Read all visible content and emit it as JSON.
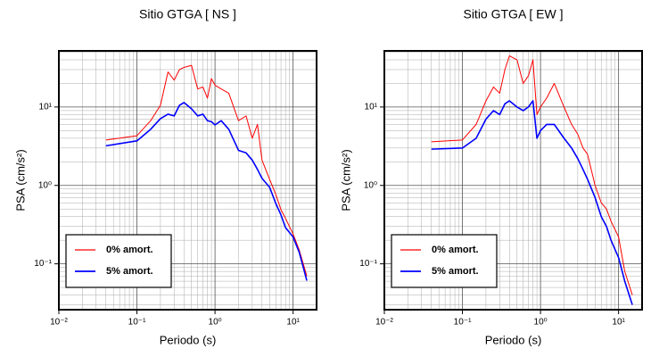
{
  "chart_data": [
    {
      "type": "line",
      "title": "Sitio GTGA [ NS ]",
      "xlabel": "Periodo (s)",
      "ylabel": "PSA (cm/s²)",
      "log_x": true,
      "log_y": true,
      "grid": true,
      "legend": "lower left",
      "x": [
        0.04,
        0.1,
        0.15,
        0.2,
        0.25,
        0.3,
        0.35,
        0.4,
        0.5,
        0.6,
        0.7,
        0.8,
        0.9,
        1,
        1.2,
        1.5,
        2,
        2.5,
        3,
        3.5,
        4,
        5,
        6,
        7,
        8,
        10,
        12,
        15
      ],
      "series": [
        {
          "name": "0% amort.",
          "color": "#ff0000",
          "values": [
            3.8,
            4.3,
            6.7,
            10.5,
            28,
            22,
            30,
            32,
            34,
            17,
            18,
            13,
            23,
            19,
            17,
            15,
            6.7,
            7.7,
            4,
            6,
            2.1,
            1.2,
            0.77,
            0.49,
            0.38,
            0.24,
            0.15,
            0.07
          ]
        },
        {
          "name": "5% amort.",
          "color": "#0000ff",
          "values": [
            3.2,
            3.7,
            5.2,
            7.1,
            8.1,
            7.7,
            10.5,
            11.4,
            9.5,
            7.7,
            8.1,
            6.7,
            6.5,
            5.9,
            6.7,
            5.2,
            2.8,
            2.6,
            2.1,
            1.6,
            1.23,
            0.95,
            0.59,
            0.42,
            0.29,
            0.22,
            0.14,
            0.061
          ]
        }
      ],
      "xlim": [
        0.01,
        20
      ],
      "ylim": [
        0.026,
        52
      ],
      "xticks": [
        {
          "value": 0.01,
          "label": "10⁻²"
        },
        {
          "value": 0.1,
          "label": "10⁻¹"
        },
        {
          "value": 1,
          "label": "10⁰"
        },
        {
          "value": 10,
          "label": "10¹"
        }
      ],
      "yticks": [
        {
          "value": 0.1,
          "label": "10⁻¹"
        },
        {
          "value": 1,
          "label": "10⁰"
        },
        {
          "value": 10,
          "label": "10¹"
        }
      ],
      "xminor": [
        0.02,
        0.03,
        0.04,
        0.05,
        0.06,
        0.07,
        0.08,
        0.09,
        0.2,
        0.3,
        0.4,
        0.5,
        0.6,
        0.7,
        0.8,
        0.9,
        2,
        3,
        4,
        5,
        6,
        7,
        8,
        9
      ],
      "yminor": [
        0.03,
        0.04,
        0.05,
        0.06,
        0.07,
        0.08,
        0.09,
        0.2,
        0.3,
        0.4,
        0.5,
        0.6,
        0.7,
        0.8,
        0.9,
        2,
        3,
        4,
        5,
        6,
        7,
        8,
        9,
        20,
        30,
        40,
        50
      ]
    },
    {
      "type": "line",
      "title": "Sitio GTGA [ EW ]",
      "xlabel": "Periodo (s)",
      "ylabel": "PSA (cm/s²)",
      "log_x": true,
      "log_y": true,
      "grid": true,
      "legend": "lower left",
      "x": [
        0.04,
        0.1,
        0.15,
        0.2,
        0.25,
        0.3,
        0.35,
        0.4,
        0.5,
        0.6,
        0.7,
        0.8,
        0.9,
        1,
        1.2,
        1.5,
        2,
        2.5,
        3,
        3.5,
        4,
        5,
        6,
        7,
        8,
        10,
        12,
        15
      ],
      "series": [
        {
          "name": "0% amort.",
          "color": "#ff0000",
          "values": [
            3.6,
            3.8,
            6,
            12,
            18,
            15,
            30,
            45,
            40,
            20,
            25,
            40,
            8,
            10,
            13,
            20,
            10,
            6,
            4.5,
            3,
            2.5,
            1,
            0.6,
            0.5,
            0.35,
            0.22,
            0.08,
            0.04
          ]
        },
        {
          "name": "5% amort.",
          "color": "#0000ff",
          "values": [
            2.9,
            3,
            4,
            7,
            9,
            8,
            11,
            12,
            10,
            9,
            10,
            12,
            4,
            5,
            6,
            6,
            4,
            3,
            2.2,
            1.6,
            1.2,
            0.7,
            0.4,
            0.3,
            0.2,
            0.12,
            0.06,
            0.03
          ]
        }
      ],
      "xlim": [
        0.01,
        20
      ],
      "ylim": [
        0.026,
        52
      ],
      "xticks": [
        {
          "value": 0.01,
          "label": "10⁻²"
        },
        {
          "value": 0.1,
          "label": "10⁻¹"
        },
        {
          "value": 1,
          "label": "10⁰"
        },
        {
          "value": 10,
          "label": "10¹"
        }
      ],
      "yticks": [
        {
          "value": 0.1,
          "label": "10⁻¹"
        },
        {
          "value": 1,
          "label": "10⁰"
        },
        {
          "value": 10,
          "label": "10¹"
        }
      ],
      "xminor": [
        0.02,
        0.03,
        0.04,
        0.05,
        0.06,
        0.07,
        0.08,
        0.09,
        0.2,
        0.3,
        0.4,
        0.5,
        0.6,
        0.7,
        0.8,
        0.9,
        2,
        3,
        4,
        5,
        6,
        7,
        8,
        9
      ],
      "yminor": [
        0.03,
        0.04,
        0.05,
        0.06,
        0.07,
        0.08,
        0.09,
        0.2,
        0.3,
        0.4,
        0.5,
        0.6,
        0.7,
        0.8,
        0.9,
        2,
        3,
        4,
        5,
        6,
        7,
        8,
        9,
        20,
        30,
        40,
        50
      ]
    }
  ]
}
